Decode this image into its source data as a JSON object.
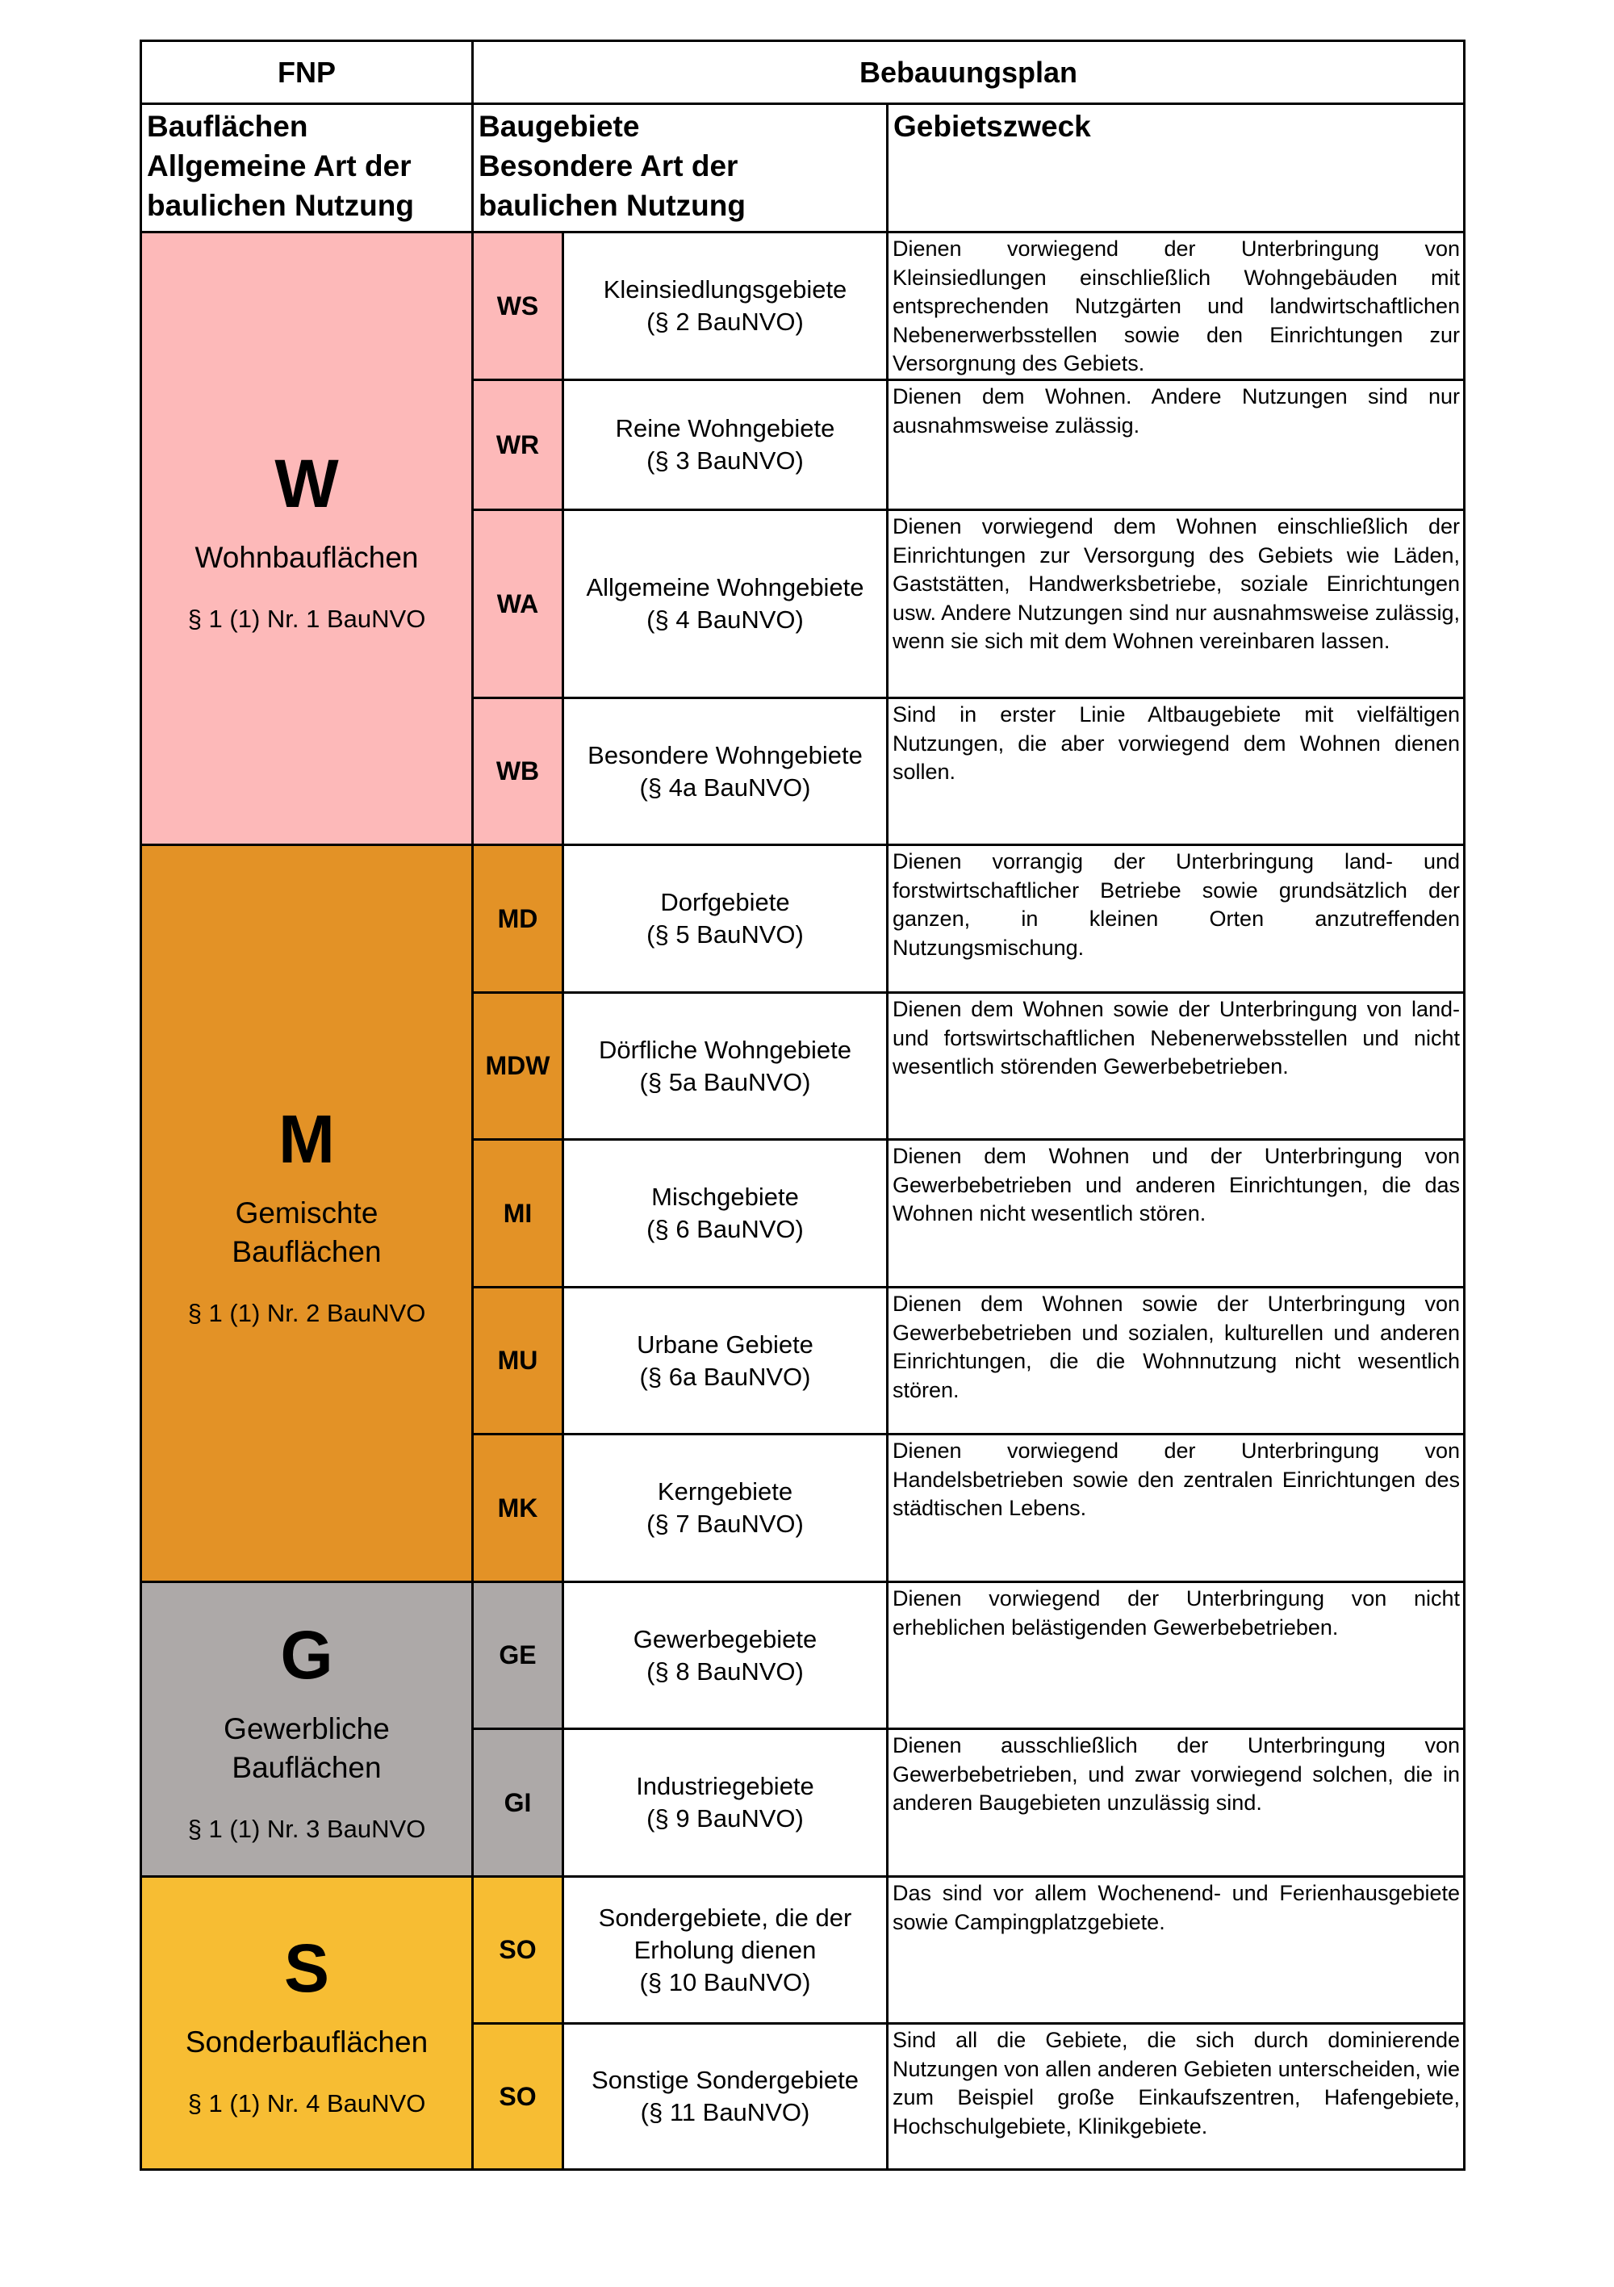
{
  "header": {
    "fnp": "FNP",
    "bebauungsplan": "Bebauungsplan",
    "col1": [
      "Bauflächen",
      "Allgemeine Art der",
      "baulichen Nutzung"
    ],
    "col2": [
      "Baugebiete",
      "Besondere Art der",
      "baulichen Nutzung"
    ],
    "col3": "Gebietszweck"
  },
  "groups": [
    {
      "letter": "W",
      "name": [
        "Wohnbauflächen"
      ],
      "paragraph": "§ 1 (1) Nr. 1 BauNVO",
      "color": "#fdb9b9",
      "rows": 4
    },
    {
      "letter": "M",
      "name": [
        "Gemischte",
        "Bauflächen"
      ],
      "paragraph": "§ 1 (1) Nr. 2 BauNVO",
      "color": "#e39226",
      "rows": 5
    },
    {
      "letter": "G",
      "name": [
        "Gewerbliche",
        "Bauflächen"
      ],
      "paragraph": "§ 1 (1) Nr. 3 BauNVO",
      "color": "#ada9a8",
      "rows": 2
    },
    {
      "letter": "S",
      "name": [
        "Sonderbauflächen"
      ],
      "paragraph": "§ 1 (1) Nr. 4 BauNVO",
      "color": "#f7bd33",
      "rows": 2
    }
  ],
  "areas": [
    {
      "code": "WS",
      "name": [
        "Kleinsiedlungsgebiete",
        "(§ 2 BauNVO)"
      ],
      "purpose": "Dienen vorwiegend der Unterbringung von Kleinsiedlungen einschließlich Wohngebäuden mit entsprechenden Nutzgärten und landwirtschaftlichen Nebenerwerbsstellen sowie den Einrichtungen zur Versorgnung des Gebiets."
    },
    {
      "code": "WR",
      "name": [
        "Reine Wohngebiete",
        "(§ 3 BauNVO)"
      ],
      "purpose": "Dienen dem Wohnen. Andere Nutzungen sind nur ausnahmsweise zulässig."
    },
    {
      "code": "WA",
      "name": [
        "Allgemeine Wohngebiete",
        "(§ 4 BauNVO)"
      ],
      "purpose": "Dienen vorwiegend dem Wohnen einschließlich der Einrichtungen zur Versorgung des Gebiets wie Läden, Gaststätten, Handwerksbetriebe, soziale Einrichtungen usw. Andere Nutzungen sind nur ausnahmsweise zulässig, wenn sie sich mit dem Wohnen vereinbaren lassen."
    },
    {
      "code": "WB",
      "name": [
        "Besondere Wohngebiete",
        "(§ 4a BauNVO)"
      ],
      "purpose": "Sind in erster Linie Altbaugebiete mit vielfältigen Nutzungen, die aber vorwiegend dem Wohnen dienen sollen."
    },
    {
      "code": "MD",
      "name": [
        "Dorfgebiete",
        "(§ 5 BauNVO)"
      ],
      "purpose": "Dienen vorrangig der Unterbringung land- und forstwirtschaftlicher Betriebe sowie grundsätzlich der ganzen, in kleinen Orten anzutreffenden Nutzungsmischung."
    },
    {
      "code": "MDW",
      "name": [
        "Dörfliche Wohngebiete",
        "(§ 5a BauNVO)"
      ],
      "purpose": "Dienen dem Wohnen sowie der Unterbringung von land- und fortswirtschaftlichen Nebenerwebsstellen und nicht wesentlich störenden Gewerbebetrieben."
    },
    {
      "code": "MI",
      "name": [
        "Mischgebiete",
        "(§ 6 BauNVO)"
      ],
      "purpose": "Dienen dem  Wohnen und der Unterbringung von Gewerbebetrieben und anderen Einrichtungen, die das Wohnen nicht wesentlich stören."
    },
    {
      "code": "MU",
      "name": [
        "Urbane Gebiete",
        "(§ 6a BauNVO)"
      ],
      "purpose": "Dienen dem Wohnen sowie der Unterbringung von Gewerbebetrieben und sozialen, kulturellen und anderen Einrichtungen, die die Wohnnutzung nicht wesentlich stören."
    },
    {
      "code": "MK",
      "name": [
        "Kerngebiete",
        "(§ 7 BauNVO)"
      ],
      "purpose": "Dienen vorwiegend der Unterbringung von Handelsbetrieben sowie den zentralen Einrichtungen des städtischen Lebens."
    },
    {
      "code": "GE",
      "name": [
        "Gewerbegebiete",
        "(§ 8 BauNVO)"
      ],
      "purpose": "Dienen vorwiegend der Unterbringung von nicht erheblichen belästigenden Gewerbebetrieben."
    },
    {
      "code": "GI",
      "name": [
        "Industriegebiete",
        "(§ 9 BauNVO)"
      ],
      "purpose": "Dienen ausschließlich der Unterbringung von Gewerbebetrieben, und zwar vorwiegend solchen, die in anderen Baugebieten unzulässig sind."
    },
    {
      "code": "SO",
      "name": [
        "Sondergebiete, die der",
        "Erholung dienen",
        "(§ 10 BauNVO)"
      ],
      "purpose": "Das sind vor allem Wochenend- und Ferienhausgebiete sowie Campingplatzgebiete."
    },
    {
      "code": "SO",
      "name": [
        "Sonstige Sondergebiete",
        "(§ 11 BauNVO)"
      ],
      "purpose": "Sind all die Gebiete, die sich durch dominierende Nutzungen von allen anderen Gebieten unterscheiden, wie zum Beispiel große Einkaufszentren, Hafengebiete, Hochschulgebiete, Klinikgebiete."
    }
  ]
}
